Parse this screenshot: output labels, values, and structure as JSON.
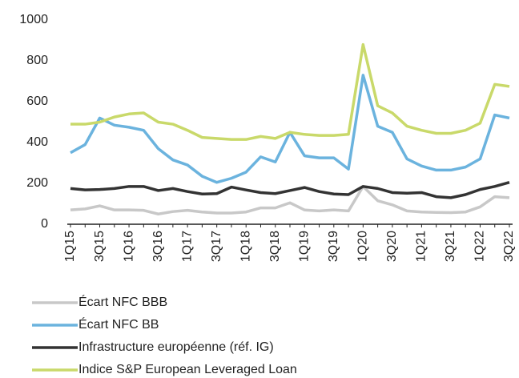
{
  "chart_data": {
    "type": "line",
    "categories": [
      "1Q15",
      null,
      "3Q15",
      null,
      "1Q16",
      null,
      "3Q16",
      null,
      "1Q17",
      null,
      "3Q17",
      null,
      "1Q18",
      null,
      "3Q18",
      null,
      "1Q19",
      null,
      "3Q19",
      null,
      "1Q20",
      null,
      "3Q20",
      null,
      "1Q21",
      null,
      "3Q21",
      null,
      "1Q22",
      null,
      "3Q22"
    ],
    "series": [
      {
        "name": "Écart NFC BBB",
        "color": "#c8c8c8",
        "values": [
          70,
          75,
          90,
          70,
          70,
          68,
          50,
          62,
          68,
          60,
          55,
          55,
          60,
          80,
          80,
          105,
          70,
          65,
          70,
          65,
          185,
          115,
          95,
          65,
          60,
          58,
          57,
          60,
          85,
          135,
          130
        ]
      },
      {
        "name": "Écart NFC BB",
        "color": "#6bb3de",
        "values": [
          350,
          390,
          520,
          485,
          475,
          460,
          370,
          315,
          290,
          235,
          205,
          225,
          255,
          330,
          305,
          450,
          335,
          325,
          325,
          270,
          730,
          480,
          450,
          320,
          285,
          265,
          265,
          280,
          320,
          535,
          520
        ]
      },
      {
        "name": "Infrastructure européenne (réf. IG)",
        "color": "#333333",
        "values": [
          175,
          168,
          170,
          175,
          185,
          185,
          165,
          175,
          160,
          148,
          150,
          182,
          168,
          155,
          150,
          165,
          180,
          160,
          148,
          145,
          185,
          175,
          155,
          152,
          155,
          135,
          130,
          145,
          170,
          185,
          205
        ]
      },
      {
        "name": "Indice S&P European Leveraged Loan",
        "color": "#c9d96a",
        "values": [
          490,
          490,
          500,
          525,
          540,
          545,
          500,
          490,
          460,
          425,
          420,
          415,
          415,
          430,
          420,
          450,
          440,
          435,
          435,
          440,
          880,
          580,
          545,
          480,
          460,
          445,
          445,
          460,
          495,
          685,
          675
        ]
      }
    ],
    "ylim": [
      0,
      1000
    ],
    "yticks": [
      0,
      200,
      400,
      600,
      800,
      1000
    ],
    "grid": false
  }
}
